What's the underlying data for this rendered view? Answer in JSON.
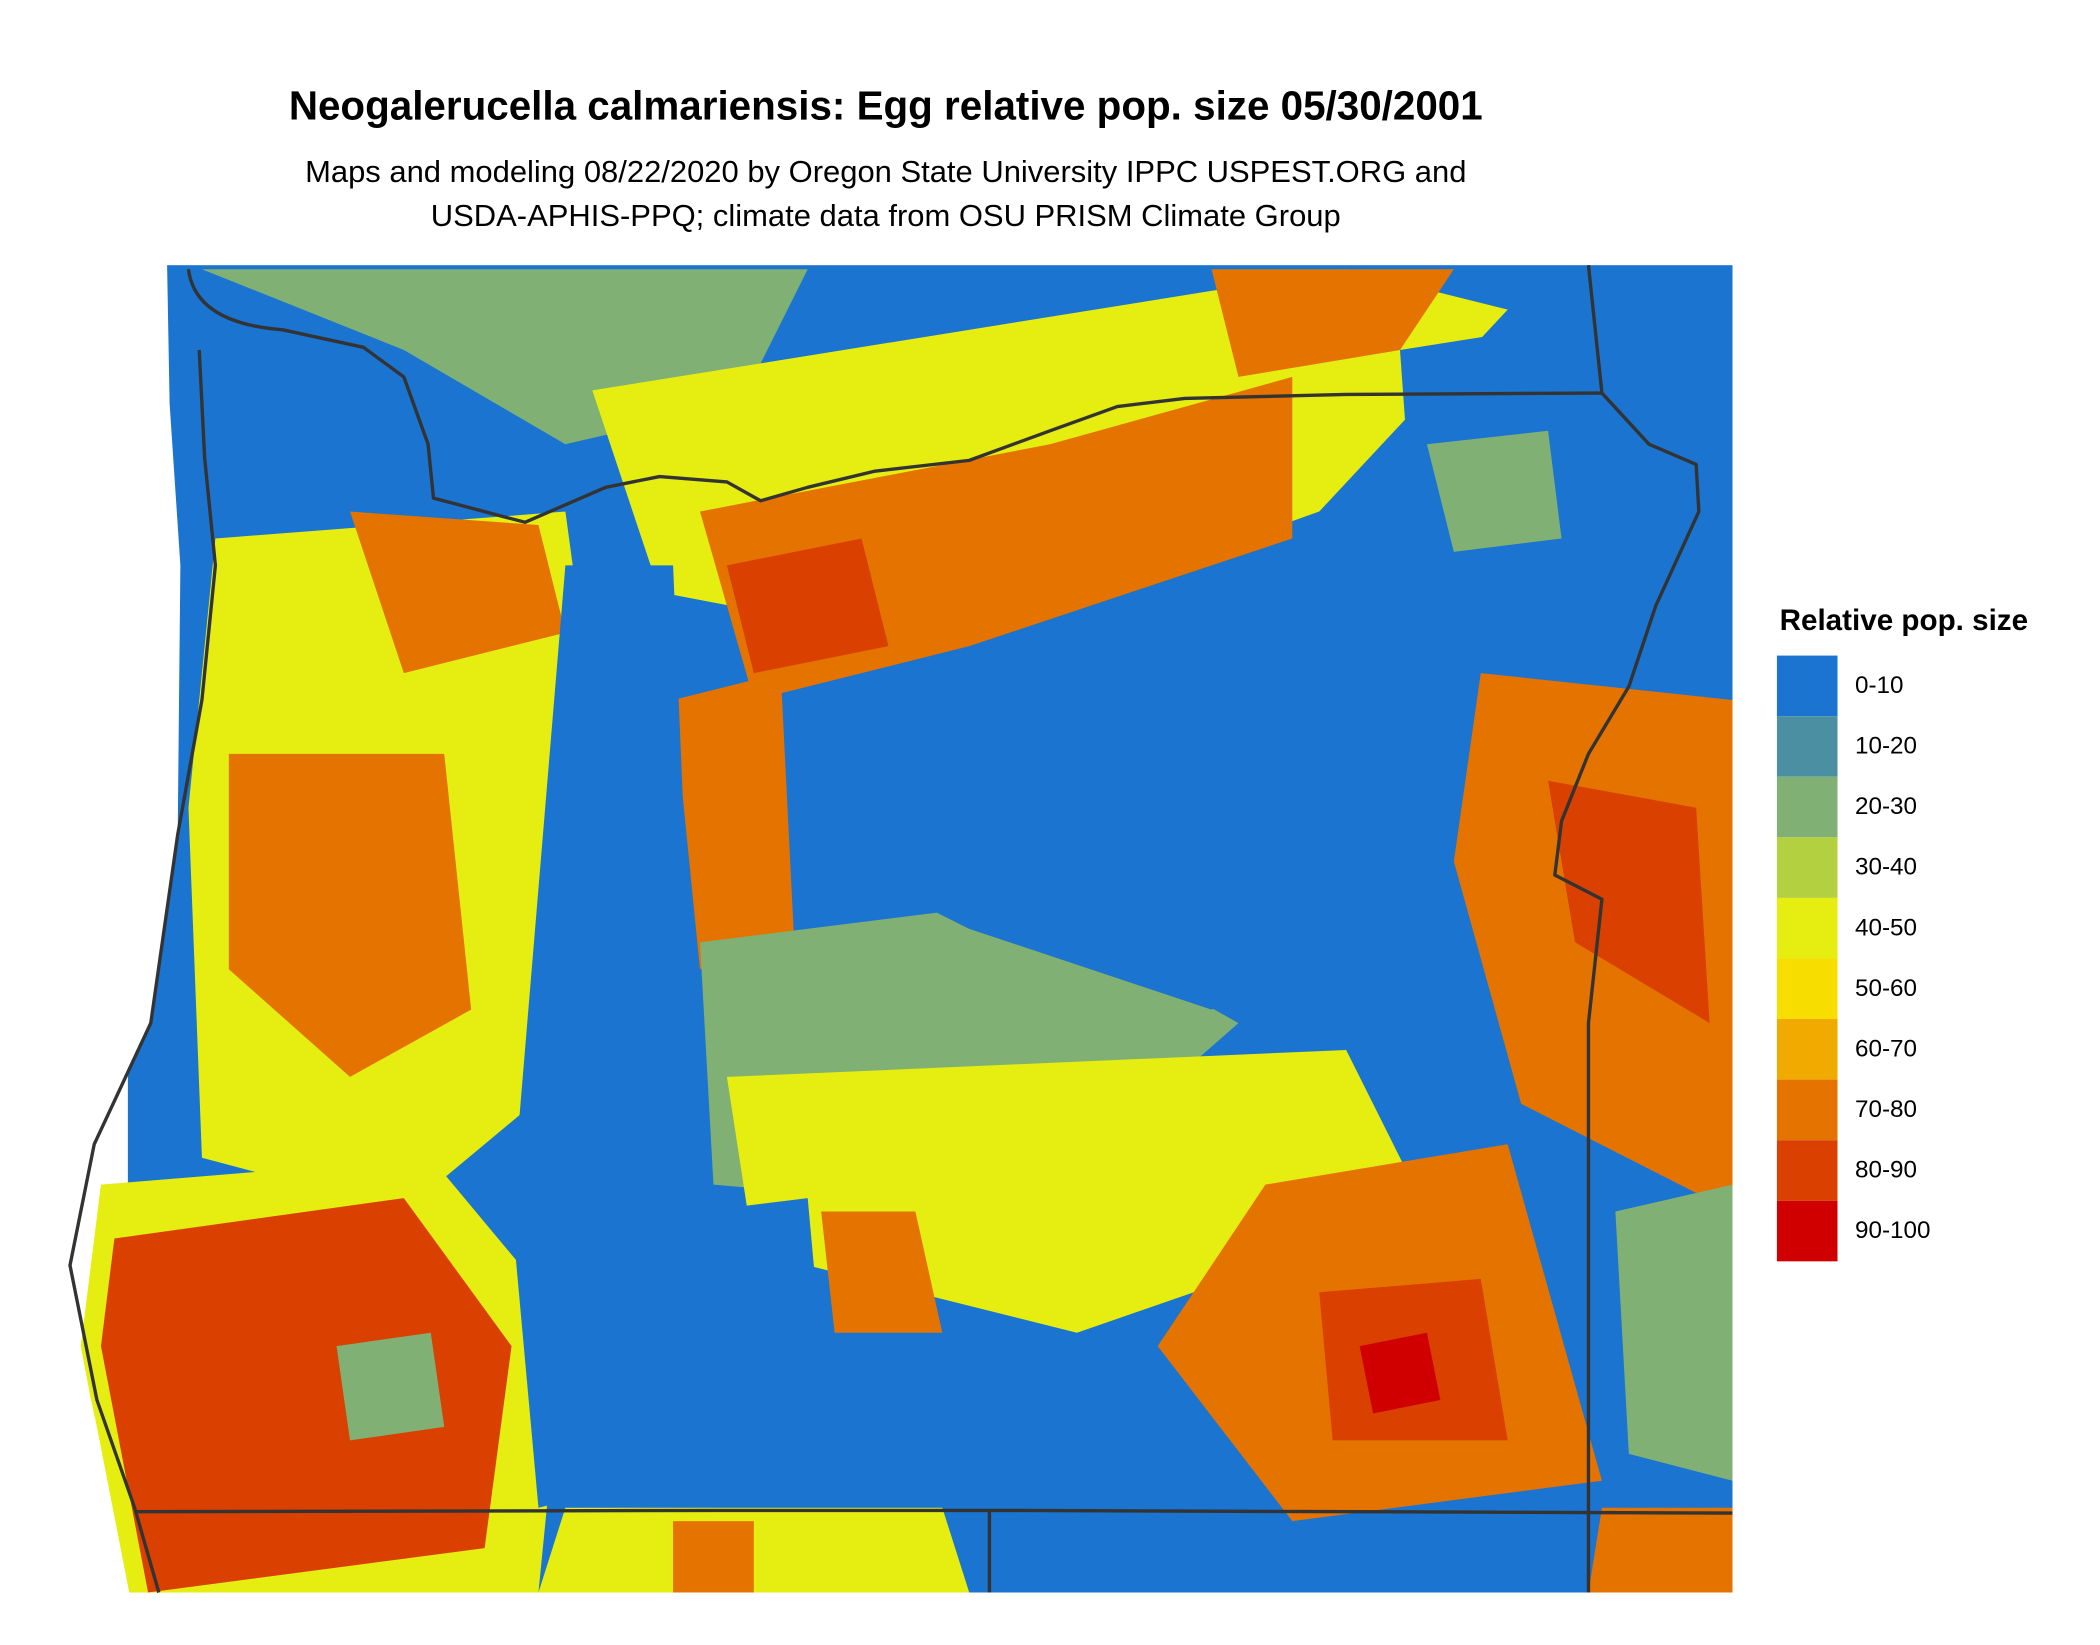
{
  "title": "Neogalerucella calmariensis: Egg relative pop. size 05/30/2001",
  "subtitle": [
    "Maps and modeling 08/22/2020 by Oregon State University IPPC USPEST.ORG and",
    "USDA-APHIS-PPQ; climate data from OSU PRISM Climate Group"
  ],
  "legend": {
    "title": "Relative pop. size",
    "items": [
      {
        "label": "0-10",
        "color": "#1a74d0"
      },
      {
        "label": "10-20",
        "color": "#4a8fa2"
      },
      {
        "label": "20-30",
        "color": "#80b073"
      },
      {
        "label": "30-40",
        "color": "#b2d040"
      },
      {
        "label": "40-50",
        "color": "#e5ee10"
      },
      {
        "label": "50-60",
        "color": "#f7de00"
      },
      {
        "label": "60-70",
        "color": "#f0aa00"
      },
      {
        "label": "70-80",
        "color": "#e57300"
      },
      {
        "label": "80-90",
        "color": "#da4000"
      },
      {
        "label": "90-100",
        "color": "#d00000"
      }
    ]
  }
}
